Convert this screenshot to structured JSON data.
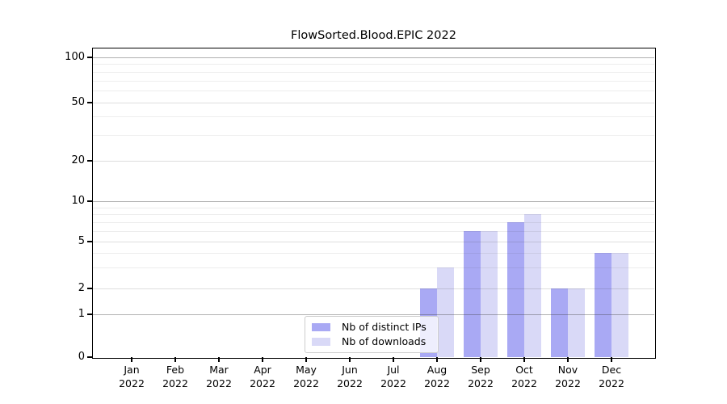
{
  "title": "FlowSorted.Blood.EPIC 2022",
  "colors": {
    "ips_bar": "#a9a9f4",
    "downloads_bar": "#d9d9f7",
    "grid_pow10": "rgba(60,60,60,0.40)",
    "grid_mid": "rgba(60,60,60,0.17)",
    "grid_minor": "rgba(60,60,60,0.09)",
    "spine": "#000000",
    "legend_border": "#cccccc"
  },
  "y_axis": {
    "tick_values": [
      100,
      50,
      20,
      10,
      5,
      2,
      1,
      0
    ],
    "tick_labels": [
      "100",
      "50",
      "20",
      "10",
      "5",
      "2",
      "1",
      "0"
    ],
    "minor_grid_values": [
      3,
      4,
      6,
      7,
      8,
      9,
      30,
      40,
      60,
      70,
      80,
      90
    ],
    "mid_grid_values": [
      2,
      5,
      20,
      50
    ],
    "pow10_grid_values": [
      1,
      10,
      100
    ],
    "anchors": {
      "0": 0,
      "1": 0.1387,
      "2": 0.2238,
      "5": 0.3743,
      "10": 0.5052,
      "20": 0.6361,
      "50": 0.8259,
      "100": 0.9712
    }
  },
  "legend": {
    "items": [
      {
        "label": "Nb of distinct IPs",
        "color_key": "ips_bar"
      },
      {
        "label": "Nb of downloads",
        "color_key": "downloads_bar"
      }
    ]
  },
  "chart_data": {
    "type": "bar",
    "title": "FlowSorted.Blood.EPIC 2022",
    "categories": [
      "Jan 2022",
      "Feb 2022",
      "Mar 2022",
      "Apr 2022",
      "May 2022",
      "Jun 2022",
      "Jul 2022",
      "Aug 2022",
      "Sep 2022",
      "Oct 2022",
      "Nov 2022",
      "Dec 2022"
    ],
    "series": [
      {
        "name": "Nb of distinct IPs",
        "values": [
          0,
          0,
          0,
          0,
          0,
          0,
          0,
          2,
          6,
          7,
          2,
          4
        ]
      },
      {
        "name": "Nb of downloads",
        "values": [
          0,
          0,
          0,
          0,
          0,
          0,
          0,
          3,
          6,
          8,
          2,
          4
        ]
      }
    ],
    "xlabel": "",
    "ylabel": "",
    "yscale": "log-like (linear 0-1, log above 1)",
    "yticks": [
      0,
      1,
      2,
      5,
      10,
      20,
      50,
      100
    ],
    "ylim": [
      0,
      112
    ],
    "grid": true,
    "legend_position": "lower center"
  }
}
